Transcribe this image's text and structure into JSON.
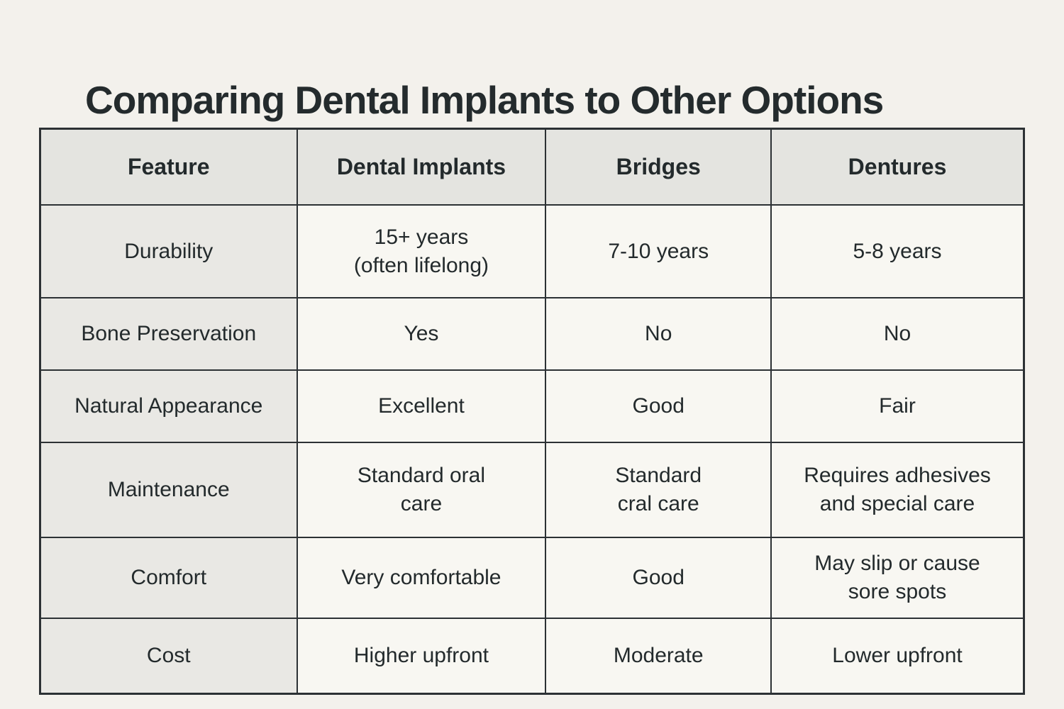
{
  "page": {
    "title": "Comparing Dental Implants to Other Options"
  },
  "colors": {
    "page_bg": "#F3F1EC",
    "header_bg": "#E4E4E0",
    "feature_col_bg": "#E9E8E4",
    "cell_bg": "#F8F7F2",
    "border": "#2C3134",
    "text": "#232A2C",
    "title_text": "#242B2D"
  },
  "chart_data": {
    "type": "table",
    "title": "Comparing Dental Implants to Other Options",
    "columns": [
      "Feature",
      "Dental Implants",
      "Bridges",
      "Dentures"
    ],
    "rows": [
      [
        "Durability",
        "15+ years\n(often lifelong)",
        "7-10 years",
        "5-8 years"
      ],
      [
        "Bone Preservation",
        "Yes",
        "No",
        "No"
      ],
      [
        "Natural Appearance",
        "Excellent",
        "Good",
        "Fair"
      ],
      [
        "Maintenance",
        "Standard oral\ncare",
        "Standard\ncral care",
        "Requires adhesives\nand special care"
      ],
      [
        "Comfort",
        "Very comfortable",
        "Good",
        "May slip or cause\nsore spots"
      ],
      [
        "Cost",
        "Higher upfront",
        "Moderate",
        "Lower upfront"
      ]
    ]
  }
}
